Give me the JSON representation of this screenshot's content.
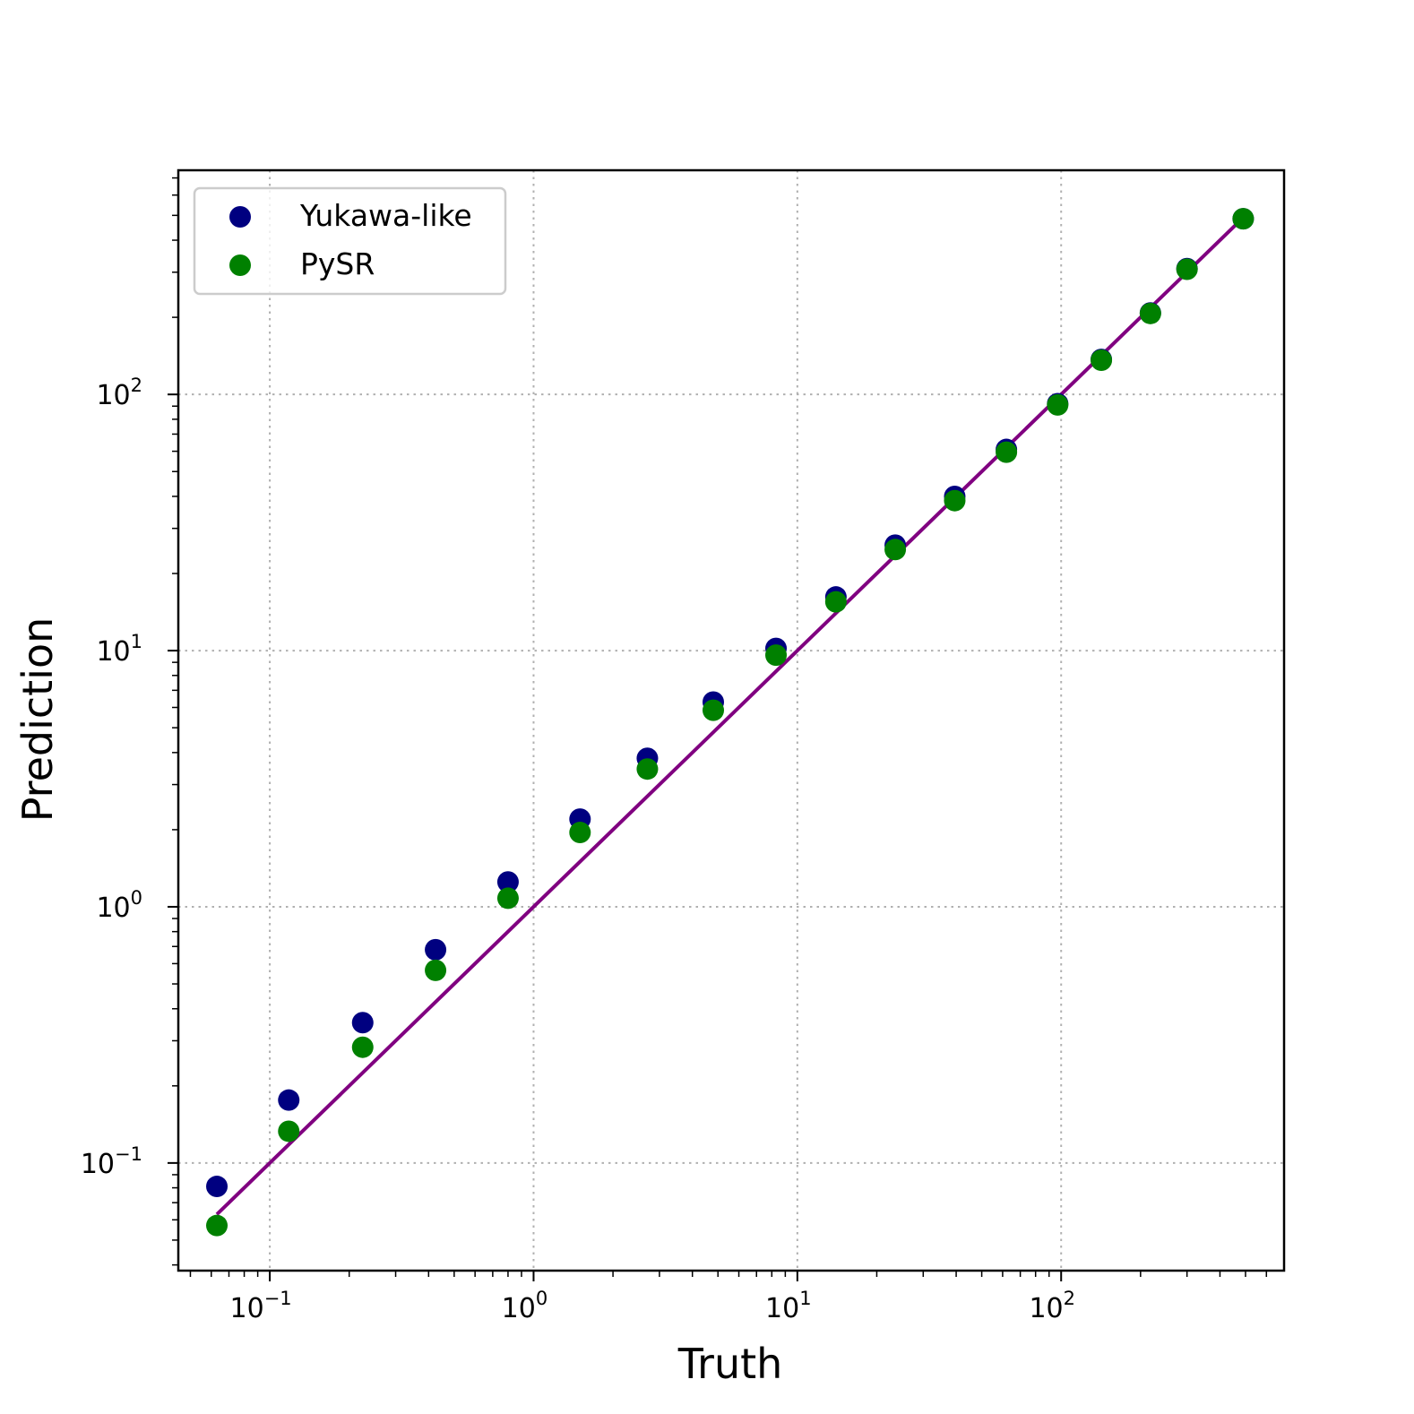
{
  "chart_data": {
    "type": "scatter",
    "title": "",
    "xlabel": "Truth",
    "ylabel": "Prediction",
    "xscale": "log",
    "yscale": "log",
    "xlim": [
      0.045,
      700
    ],
    "ylim": [
      0.038,
      750
    ],
    "grid": true,
    "legend_position": "top-left",
    "x_ticks": [
      {
        "base": "10",
        "exp": "−1",
        "value": 0.1
      },
      {
        "base": "10",
        "exp": "0",
        "value": 1
      },
      {
        "base": "10",
        "exp": "1",
        "value": 10
      },
      {
        "base": "10",
        "exp": "2",
        "value": 100
      }
    ],
    "y_ticks": [
      {
        "base": "10",
        "exp": "−1",
        "value": 0.1
      },
      {
        "base": "10",
        "exp": "0",
        "value": 1
      },
      {
        "base": "10",
        "exp": "1",
        "value": 10
      },
      {
        "base": "10",
        "exp": "2",
        "value": 100
      }
    ],
    "series": [
      {
        "name": "Yukawa-like",
        "color": "#000080",
        "points": [
          [
            0.063,
            0.081
          ],
          [
            0.118,
            0.176
          ],
          [
            0.225,
            0.353
          ],
          [
            0.425,
            0.68
          ],
          [
            0.8,
            1.25
          ],
          [
            1.5,
            2.2
          ],
          [
            2.7,
            3.8
          ],
          [
            4.8,
            6.3
          ],
          [
            8.3,
            10.2
          ],
          [
            14.0,
            16.2
          ],
          [
            23.5,
            25.8
          ],
          [
            39.5,
            40.0
          ],
          [
            62.0,
            61.0
          ],
          [
            97.0,
            92.0
          ],
          [
            142.0,
            137.0
          ],
          [
            218.0,
            208.0
          ],
          [
            300.0,
            310.0
          ],
          [
            490.0,
            485.0
          ]
        ]
      },
      {
        "name": "PySR",
        "color": "#008000",
        "points": [
          [
            0.063,
            0.057
          ],
          [
            0.118,
            0.133
          ],
          [
            0.225,
            0.283
          ],
          [
            0.425,
            0.565
          ],
          [
            0.8,
            1.08
          ],
          [
            1.5,
            1.95
          ],
          [
            2.7,
            3.45
          ],
          [
            4.8,
            5.85
          ],
          [
            8.3,
            9.6
          ],
          [
            14.0,
            15.5
          ],
          [
            23.5,
            24.8
          ],
          [
            39.5,
            38.5
          ],
          [
            62.0,
            59.5
          ],
          [
            97.0,
            91.0
          ],
          [
            142.0,
            136.0
          ],
          [
            218.0,
            207.0
          ],
          [
            300.0,
            308.0
          ],
          [
            490.0,
            485.0
          ]
        ]
      }
    ],
    "reference_line": {
      "color": "#800080",
      "x": [
        0.063,
        490.0
      ],
      "y": [
        0.063,
        490.0
      ]
    }
  }
}
